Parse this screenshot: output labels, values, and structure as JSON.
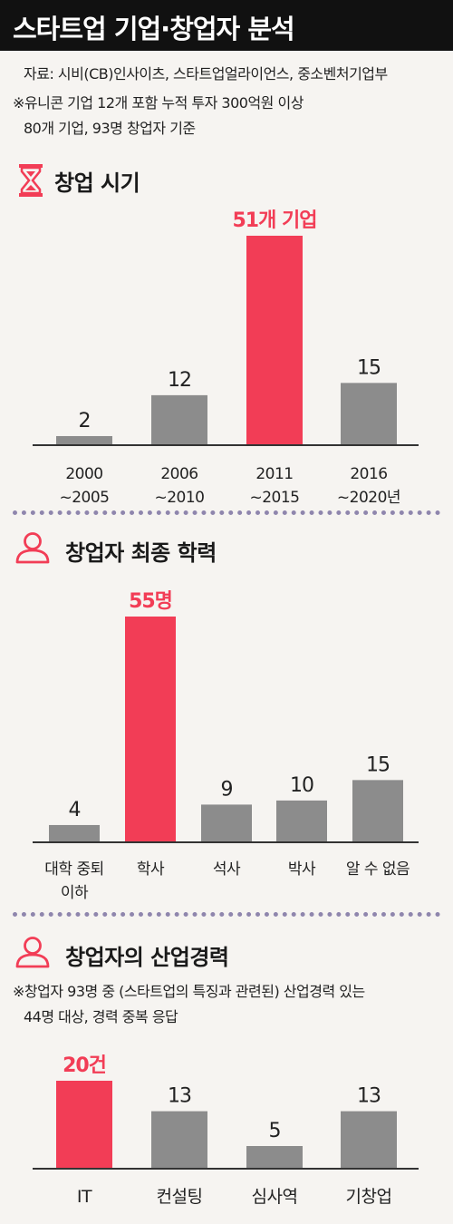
{
  "colors": {
    "highlight": "#f23d56",
    "bar": "#8c8c8c",
    "axis": "#333333",
    "divider": "#8f86ad",
    "header_bg": "#111111"
  },
  "header": {
    "title": "스타트업 기업·창업자 분석"
  },
  "notes": {
    "source": "자료: 시비(CB)인사이츠, 스타트업얼라이언스, 중소벤처기업부",
    "basis_line1": "※유니콘 기업 12개 포함 누적 투자 300억원 이상",
    "basis_line2": "80개 기업, 93명 창업자 기준"
  },
  "sections": [
    {
      "title": "창업 시기",
      "icon": "hourglass-icon"
    },
    {
      "title": "창업자 최종 학력",
      "icon": "person-icon"
    },
    {
      "title": "창업자의 산업경력",
      "icon": "person-icon",
      "note_line1": "※창업자 93명 중 (스타트업의 특징과 관련된) 산업경력 있는",
      "note_line2": "44명 대상, 경력 중복 응답"
    }
  ],
  "chart_data": [
    {
      "type": "bar",
      "title": "창업 시기",
      "categories": [
        [
          "2000",
          "~2005"
        ],
        [
          "2006",
          "~2010"
        ],
        [
          "2011",
          "~2015"
        ],
        [
          "2016",
          "~2020년"
        ]
      ],
      "values": [
        2,
        12,
        51,
        15
      ],
      "value_labels": [
        "2",
        "12",
        "51개 기업",
        "15"
      ],
      "highlight_index": 2,
      "ylim": [
        0,
        51
      ]
    },
    {
      "type": "bar",
      "title": "창업자 최종 학력",
      "categories": [
        [
          "대학 중퇴",
          "이하"
        ],
        [
          "학사"
        ],
        [
          "석사"
        ],
        [
          "박사"
        ],
        [
          "알 수 없음"
        ]
      ],
      "values": [
        4,
        55,
        9,
        10,
        15
      ],
      "value_labels": [
        "4",
        "55명",
        "9",
        "10",
        "15"
      ],
      "highlight_index": 1,
      "ylim": [
        0,
        55
      ]
    },
    {
      "type": "bar",
      "title": "창업자의 산업경력",
      "categories": [
        [
          "IT"
        ],
        [
          "컨설팅"
        ],
        [
          "심사역"
        ],
        [
          "기창업"
        ]
      ],
      "values": [
        20,
        13,
        5,
        13
      ],
      "value_labels": [
        "20건",
        "13",
        "5",
        "13"
      ],
      "highlight_index": 0,
      "ylim": [
        0,
        20
      ]
    }
  ]
}
